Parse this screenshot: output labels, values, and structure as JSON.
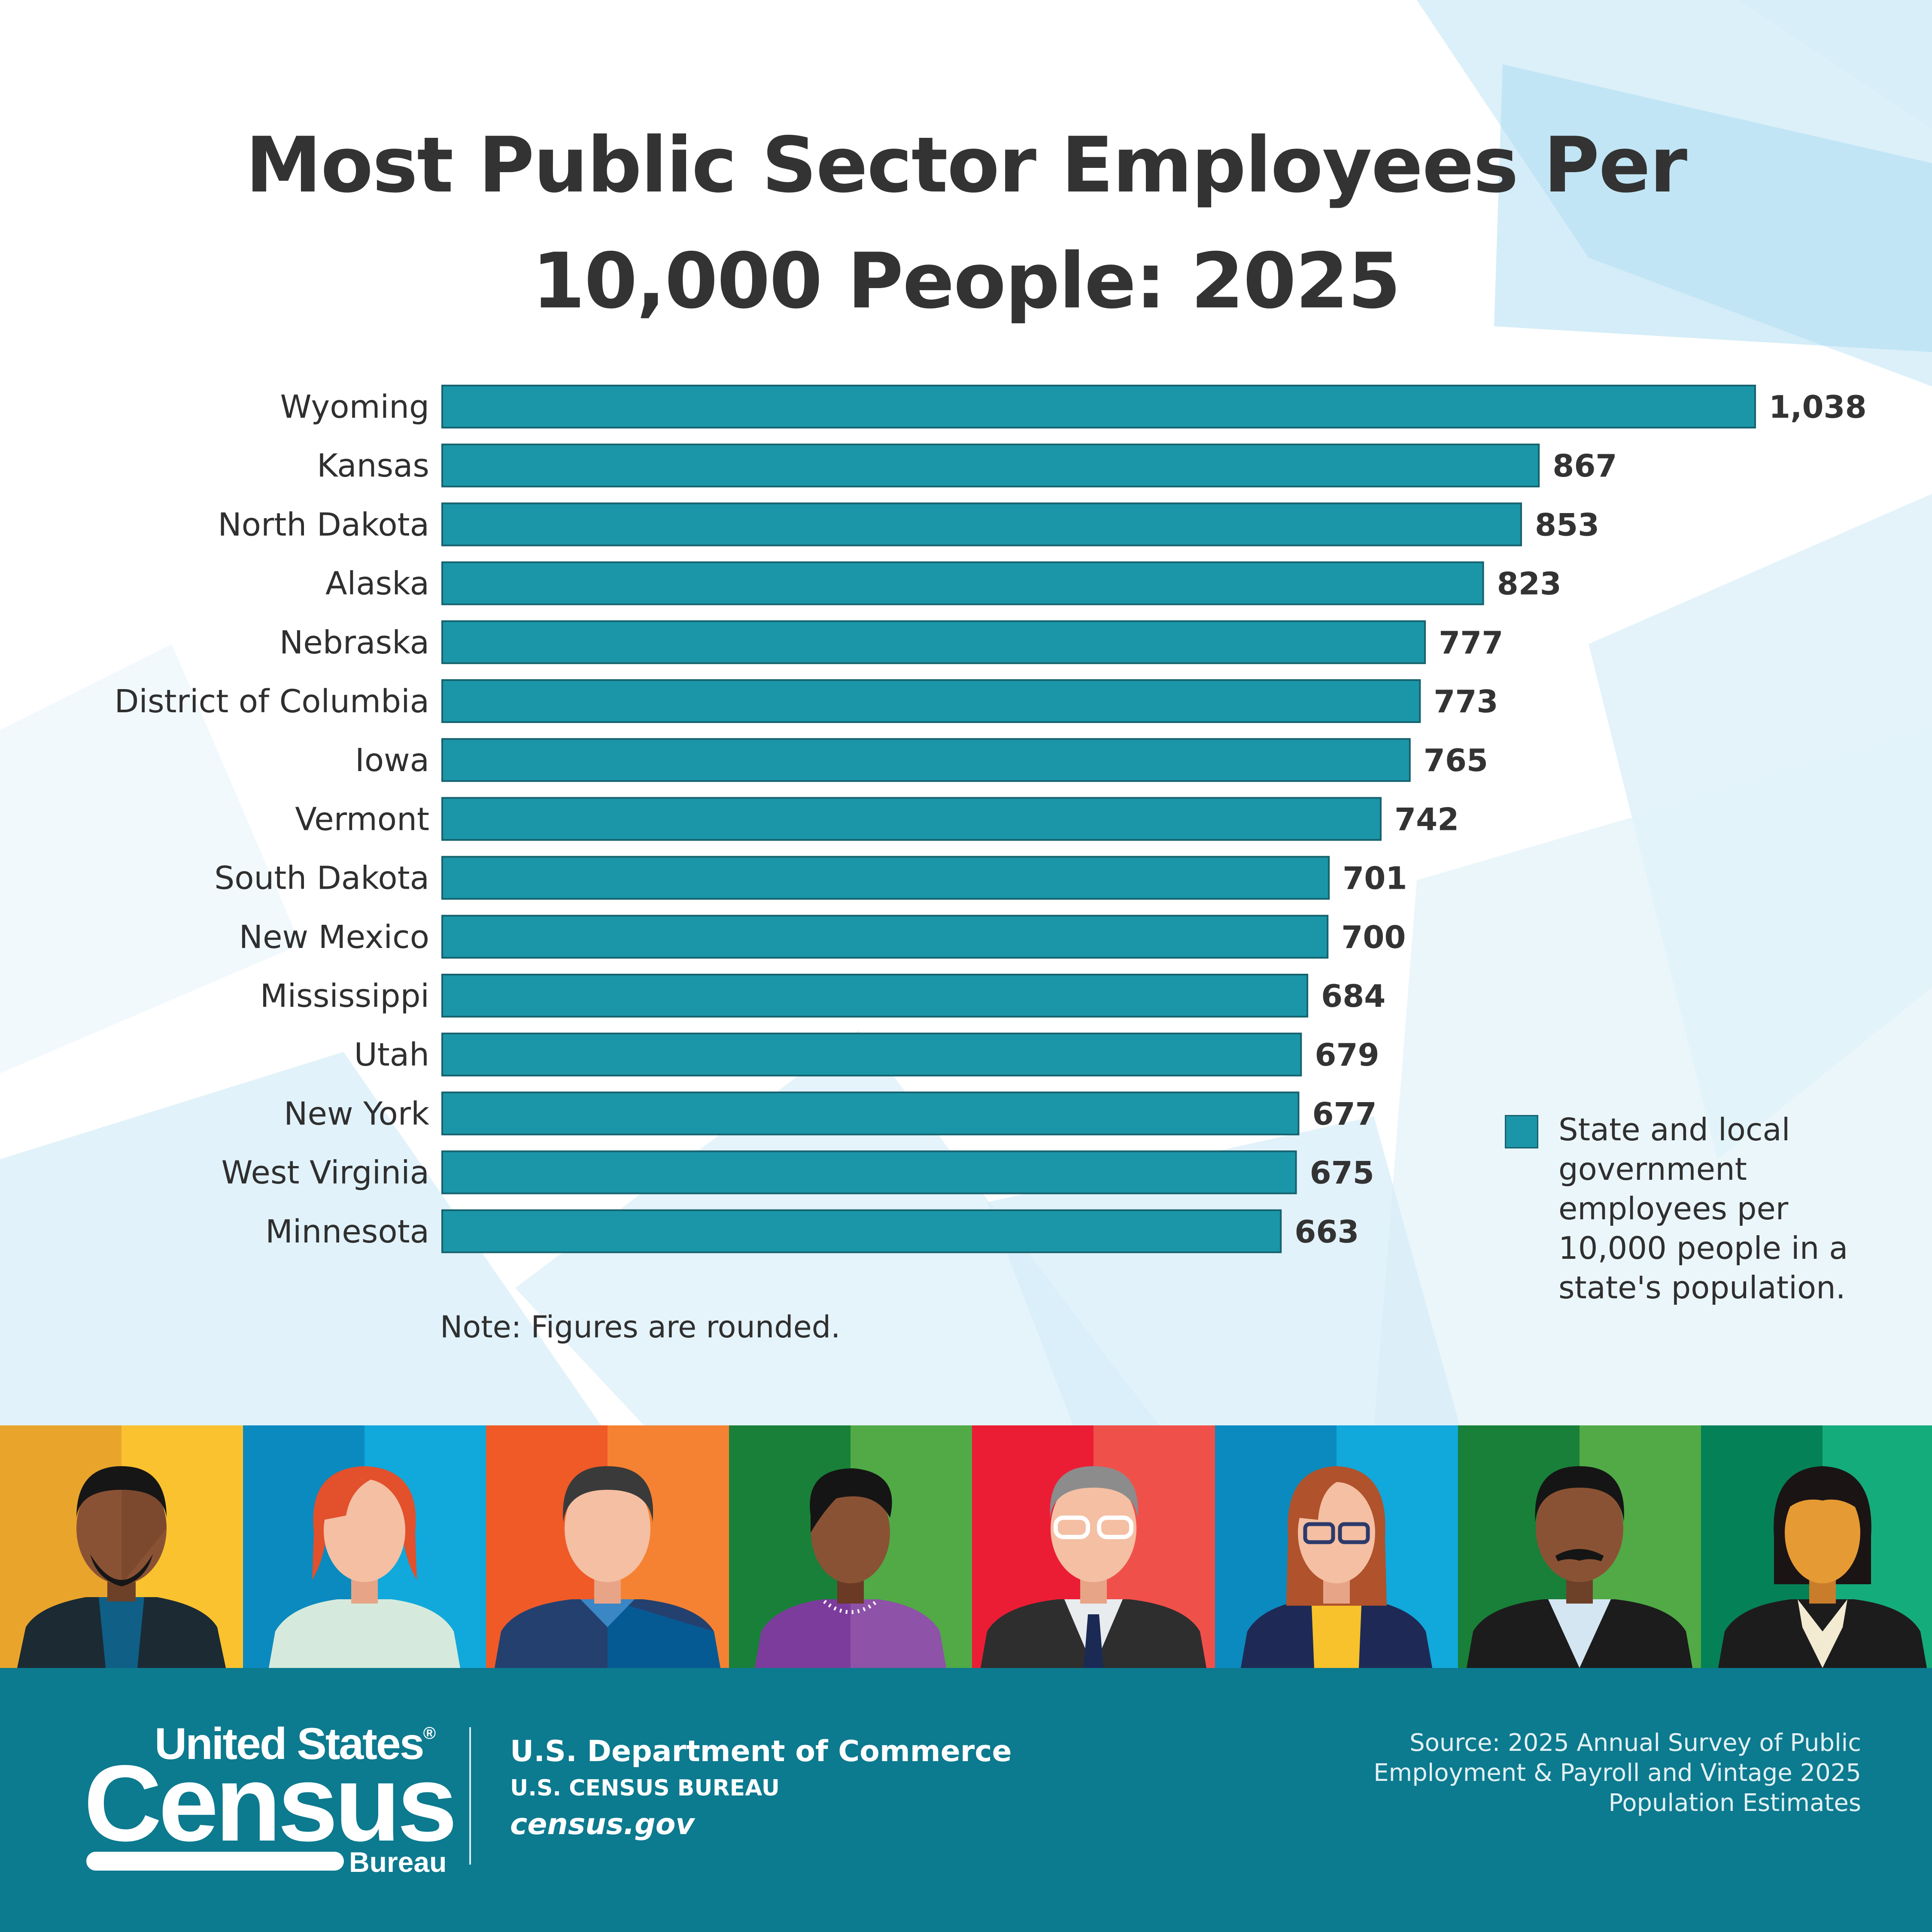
{
  "title_line1": "Most Public Sector Employees Per",
  "title_line2": "10,000 People: 2025",
  "colors": {
    "bar": "#1b96a8",
    "bar_border": "#16626e",
    "footer": "#0c7a8f",
    "title": "#333333"
  },
  "chart_data": {
    "type": "bar",
    "orientation": "horizontal",
    "categories": [
      "Wyoming",
      "Kansas",
      "North Dakota",
      "Alaska",
      "Nebraska",
      "District of Columbia",
      "Iowa",
      "Vermont",
      "South Dakota",
      "New Mexico",
      "Mississippi",
      "Utah",
      "New York",
      "West Virginia",
      "Minnesota"
    ],
    "values": [
      1038,
      867,
      853,
      823,
      777,
      773,
      765,
      742,
      701,
      700,
      684,
      679,
      677,
      675,
      663
    ],
    "value_labels": [
      "1,038",
      "867",
      "853",
      "823",
      "777",
      "773",
      "765",
      "742",
      "701",
      "700",
      "684",
      "679",
      "677",
      "675",
      "663"
    ],
    "title": "Most Public Sector Employees Per 10,000 People: 2025",
    "legend": {
      "label": "State and local government employees per 10,000 people in a state's population.",
      "lines": [
        "State and local",
        "government",
        "employees per",
        "10,000 people in a",
        "state's population."
      ],
      "position": "bottom-right"
    },
    "axis_min": 0,
    "grid": false
  },
  "note": "Note: Figures are rounded.",
  "people_icons": [
    "man-beard-icon",
    "woman-red-hair-icon",
    "man-blue-shirt-icon",
    "woman-purple-icon",
    "man-glasses-suit-icon",
    "woman-glasses-icon",
    "man-mustache-icon",
    "woman-dark-hair-icon"
  ],
  "footer": {
    "logo": {
      "line1": "United States",
      "reg": "®",
      "line2": "Census",
      "line3": "Bureau"
    },
    "department": "U.S. Department of Commerce",
    "bureau": "U.S. CENSUS BUREAU",
    "website": "census.gov",
    "source_lines": [
      "Source: 2025 Annual Survey of Public",
      "Employment & Payroll and Vintage 2025",
      "Population Estimates"
    ]
  }
}
